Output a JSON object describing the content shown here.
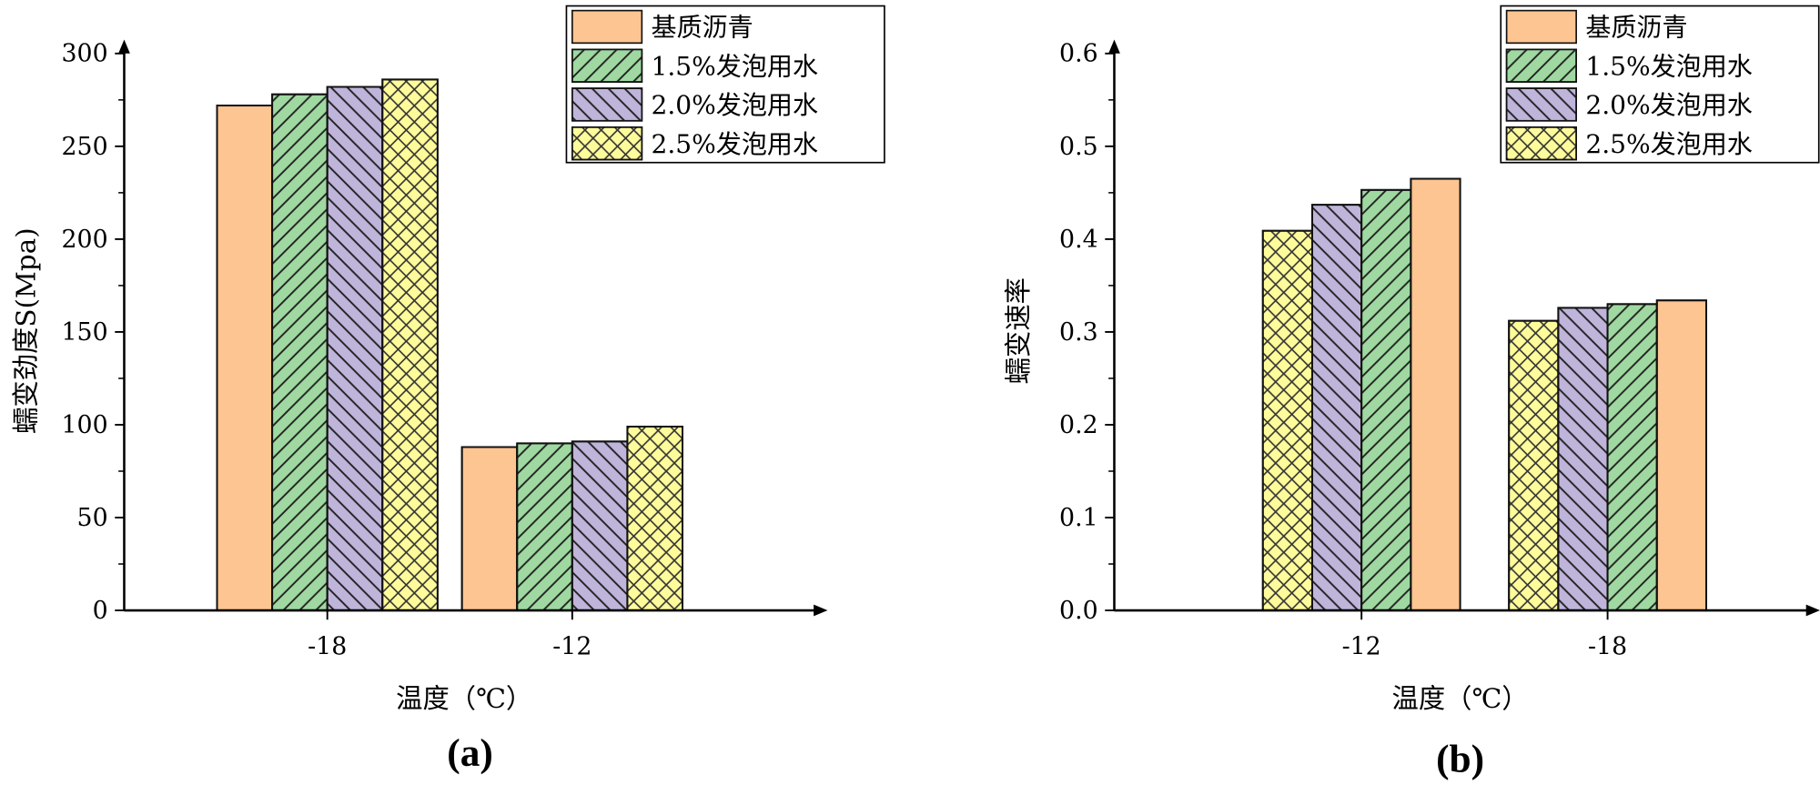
{
  "chart_data": [
    {
      "type": "bar",
      "panel_label": "(a)",
      "xlabel": "温度（℃）",
      "ylabel": "蠕变劲度S(Mpa)",
      "categories": [
        "-18",
        "-12"
      ],
      "ylim": [
        0,
        300
      ],
      "yticks": [
        "0",
        "50",
        "100",
        "150",
        "200",
        "250",
        "300"
      ],
      "grid": false,
      "legend_position": "top-right",
      "series": [
        {
          "name": "基质沥青",
          "color": "#FDC591",
          "pattern": "none",
          "values": [
            272,
            88
          ]
        },
        {
          "name": "1.5%发泡用水",
          "color": "#9FD9A1",
          "pattern": "forward-diagonal",
          "values": [
            278,
            90
          ]
        },
        {
          "name": "2.0%发泡用水",
          "color": "#BFB4DA",
          "pattern": "back-diagonal",
          "values": [
            282,
            91
          ]
        },
        {
          "name": "2.5%发泡用水",
          "color": "#FEFB9B",
          "pattern": "crosshatch",
          "values": [
            286,
            99
          ]
        }
      ],
      "bar_order": [
        0,
        1,
        2,
        3
      ]
    },
    {
      "type": "bar",
      "panel_label": "(b)",
      "xlabel": "温度（℃）",
      "ylabel": "蠕变速率",
      "categories": [
        "-12",
        "-18"
      ],
      "ylim": [
        0,
        0.6
      ],
      "yticks": [
        "0.0",
        "0.1",
        "0.2",
        "0.3",
        "0.4",
        "0.5",
        "0.6"
      ],
      "grid": false,
      "legend_position": "top-right",
      "series": [
        {
          "name": "基质沥青",
          "color": "#FDC591",
          "pattern": "none",
          "values": [
            0.465,
            0.334
          ]
        },
        {
          "name": "1.5%发泡用水",
          "color": "#9FD9A1",
          "pattern": "forward-diagonal",
          "values": [
            0.453,
            0.33
          ]
        },
        {
          "name": "2.0%发泡用水",
          "color": "#BFB4DA",
          "pattern": "back-diagonal",
          "values": [
            0.437,
            0.326
          ]
        },
        {
          "name": "2.5%发泡用水",
          "color": "#FEFB9B",
          "pattern": "crosshatch",
          "values": [
            0.409,
            0.312
          ]
        }
      ],
      "bar_order": [
        3,
        2,
        1,
        0
      ]
    }
  ]
}
